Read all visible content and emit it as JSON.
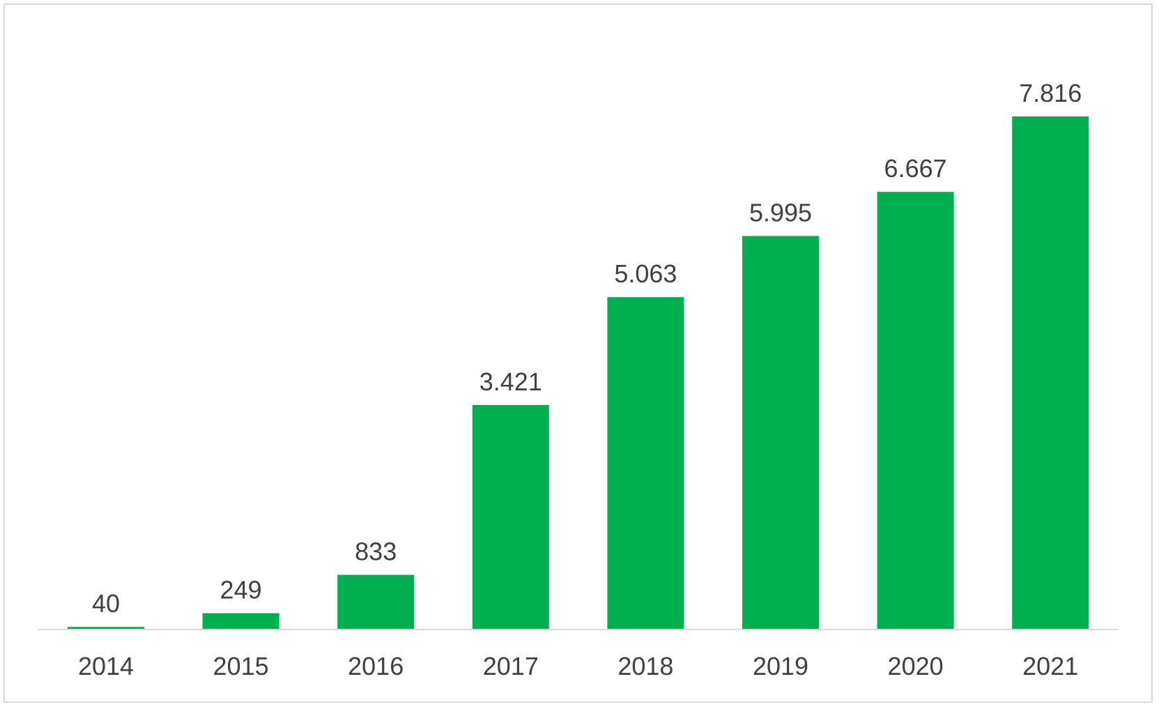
{
  "chart_data": {
    "type": "bar",
    "title": "",
    "xlabel": "",
    "ylabel": "",
    "categories": [
      "2014",
      "2015",
      "2016",
      "2017",
      "2018",
      "2019",
      "2020",
      "2021"
    ],
    "values": [
      40,
      249,
      833,
      3421,
      5063,
      5995,
      6667,
      7816
    ],
    "value_labels": [
      "40",
      "249",
      "833",
      "3.421",
      "5.063",
      "5.995",
      "6.667",
      "7.816"
    ],
    "ylim": [
      0,
      7816
    ],
    "grid": false,
    "legend": "none",
    "colors": {
      "bar": "#00b050",
      "text": "#404040",
      "axis": "#d9d9d9",
      "border": "#d9d9d9"
    }
  }
}
